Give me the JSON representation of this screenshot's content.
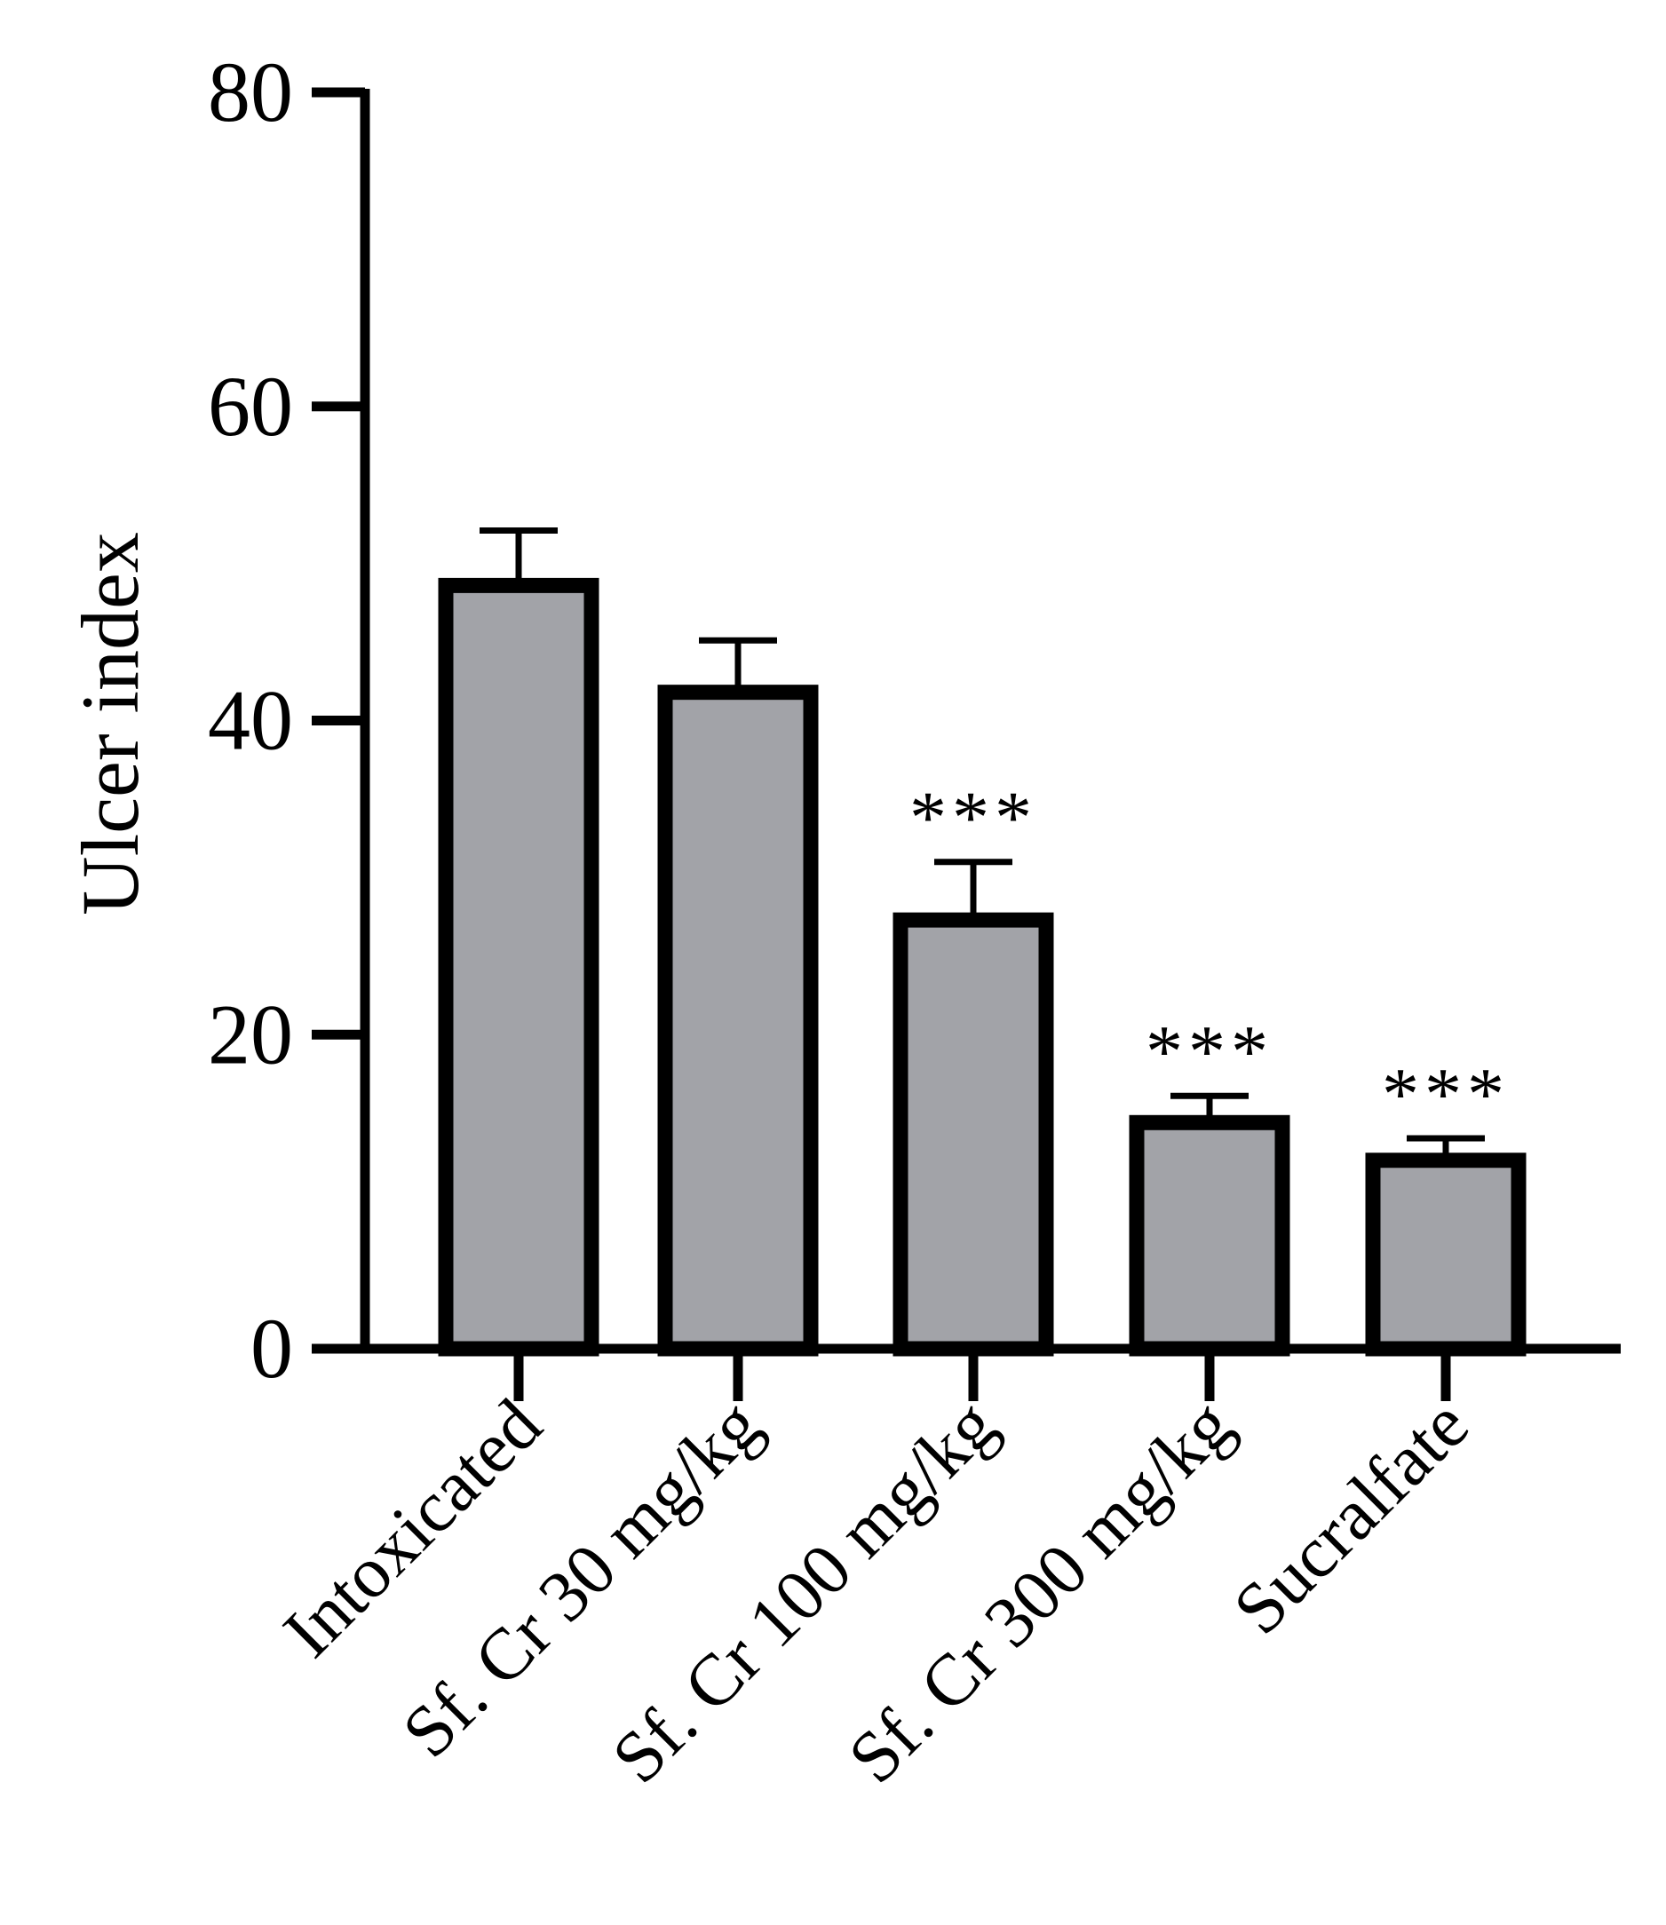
{
  "chart_data": {
    "type": "bar",
    "title": "",
    "xlabel": "",
    "ylabel": "Ulcer index",
    "ylim": [
      0,
      80
    ],
    "yticks": [
      0,
      20,
      40,
      60,
      80
    ],
    "categories": [
      "Intoxicated",
      "Sf. Cr 30 mg/kg",
      "Sf. Cr 100 mg/kg",
      "Sf. Cr 300 mg/kg",
      "Sucralfate"
    ],
    "values": [
      48.6,
      41.8,
      27.3,
      14.4,
      12.0
    ],
    "errors": [
      3.5,
      3.3,
      3.7,
      1.7,
      1.4
    ],
    "significance": [
      "",
      "",
      "***",
      "***",
      "***"
    ],
    "bar_fill": "#a2a3a8",
    "bar_stroke": "#000000",
    "grid": false,
    "legend": "none"
  }
}
